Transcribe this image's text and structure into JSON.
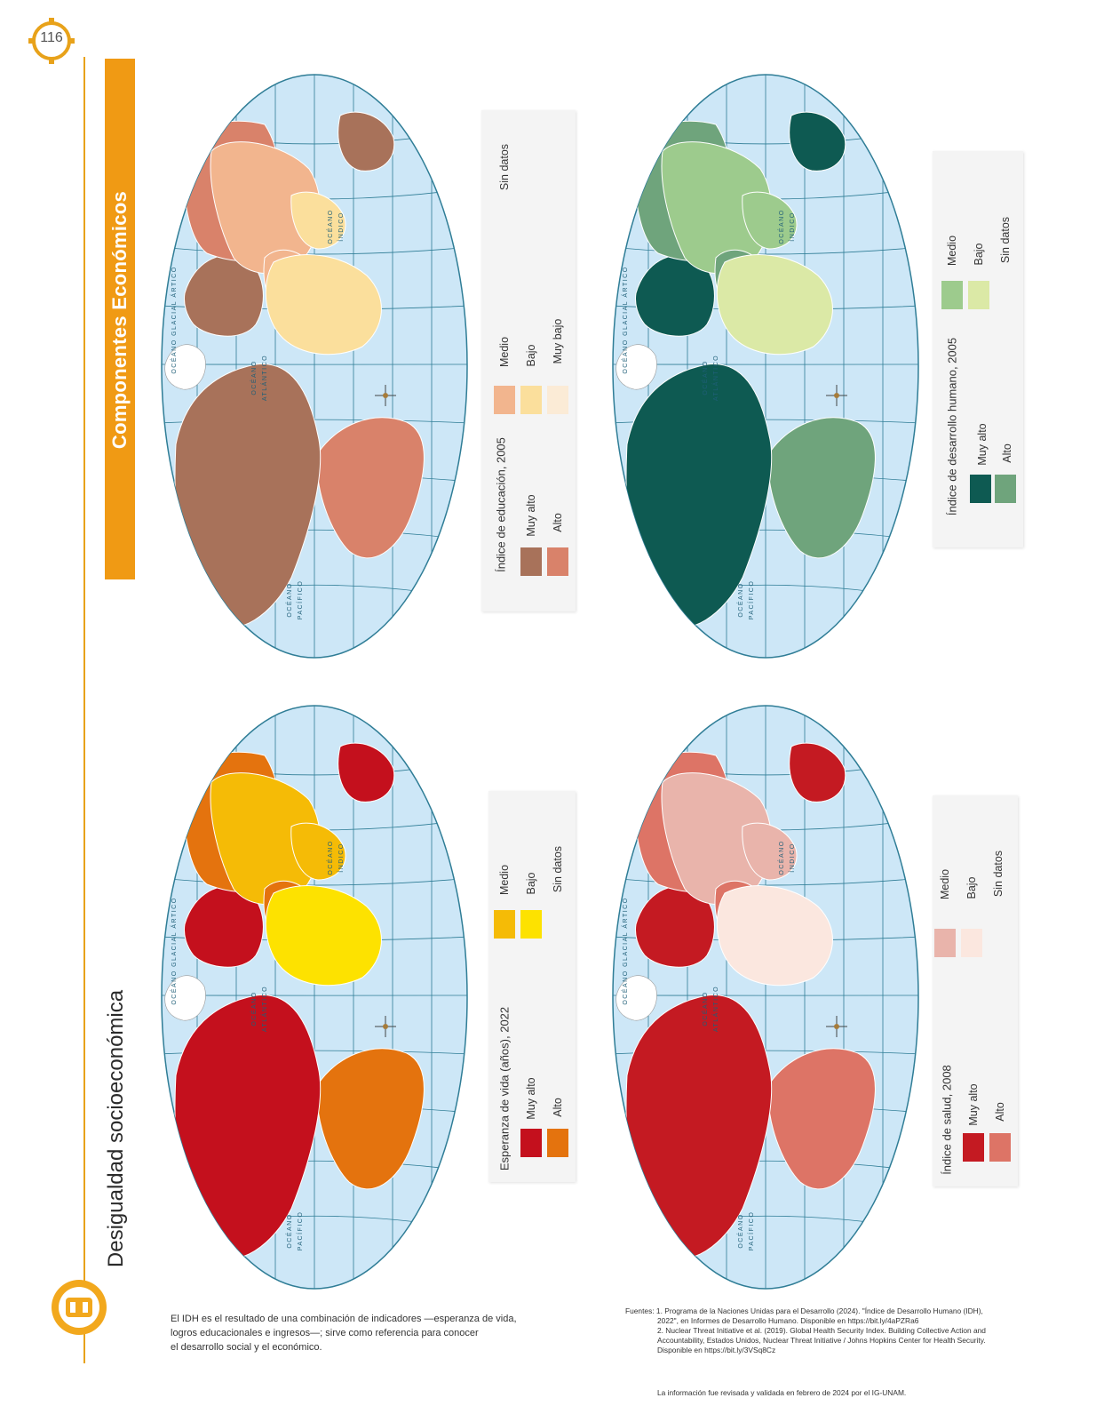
{
  "page": {
    "number": "116",
    "section_band": "Componentes Económicos",
    "title": "Desigualdad socioeconómica"
  },
  "map_labels": {
    "ocean_arctic": "OCÉANO GLACIAL ÁRTICO",
    "ocean_indic_1": "OCÉANO",
    "ocean_indic_2": "ÍNDICO",
    "ocean_atl_1": "OCÉANO",
    "ocean_atl_2": "ATLÁNTICO",
    "ocean_pac_1": "OCÉANO",
    "ocean_pac_2": "PACÍFICO"
  },
  "colors": {
    "ocean": "#cde7f7",
    "grid": "#2f7d96",
    "border": "#ffffff",
    "nodata": "#ffffff"
  },
  "maps": [
    {
      "id": "educacion",
      "legend_title": "Índice de educación, 2005",
      "classes": [
        {
          "label": "Muy alto",
          "color": "#a8725a"
        },
        {
          "label": "Alto",
          "color": "#d9826a"
        },
        {
          "label": "Medio",
          "color": "#f2b58e"
        },
        {
          "label": "Bajo",
          "color": "#fbdf9c"
        },
        {
          "label": "Muy bajo",
          "color": "#fbebd6"
        },
        {
          "label": "Sin datos",
          "color": "#ffffff"
        }
      ],
      "regions": {
        "americas": 1,
        "north_am": 0,
        "south_am": 1,
        "europe": 0,
        "russia": 1,
        "asia": 2,
        "middle_east": 2,
        "africa": 3,
        "south_asia": 3,
        "oceania": 0
      }
    },
    {
      "id": "desarrollo",
      "legend_title": "Índice de desarrollo humano, 2005",
      "classes": [
        {
          "label": "Muy alto",
          "color": "#0e5a52"
        },
        {
          "label": "Alto",
          "color": "#6fa47c"
        },
        {
          "label": "Medio",
          "color": "#9dcb8d"
        },
        {
          "label": "Bajo",
          "color": "#dbe9a6"
        },
        {
          "label": "Sin datos",
          "color": "#ffffff"
        }
      ],
      "regions": {
        "americas": 0,
        "north_am": 0,
        "south_am": 1,
        "europe": 0,
        "russia": 1,
        "asia": 2,
        "middle_east": 1,
        "africa": 3,
        "south_asia": 2,
        "oceania": 0
      }
    },
    {
      "id": "esperanza",
      "legend_title": "Esperanza de vida (años), 2022",
      "classes": [
        {
          "label": "Muy alto",
          "color": "#c4101d"
        },
        {
          "label": "Alto",
          "color": "#e4730e"
        },
        {
          "label": "Medio",
          "color": "#f5bb06"
        },
        {
          "label": "Bajo",
          "color": "#fde200"
        },
        {
          "label": "Sin datos",
          "color": "#ffffff"
        }
      ],
      "regions": {
        "americas": 0,
        "north_am": 0,
        "south_am": 1,
        "europe": 0,
        "russia": 1,
        "asia": 2,
        "middle_east": 1,
        "africa": 3,
        "south_asia": 2,
        "oceania": 0
      }
    },
    {
      "id": "salud",
      "legend_title": "Índice de salud, 2008",
      "classes": [
        {
          "label": "Muy alto",
          "color": "#c41a22"
        },
        {
          "label": "Alto",
          "color": "#dd7466"
        },
        {
          "label": "Medio",
          "color": "#e9b4ab"
        },
        {
          "label": "Bajo",
          "color": "#fbe7df"
        },
        {
          "label": "Sin datos",
          "color": "#ffffff"
        }
      ],
      "regions": {
        "americas": 0,
        "north_am": 0,
        "south_am": 1,
        "europe": 0,
        "russia": 1,
        "asia": 2,
        "middle_east": 1,
        "africa": 3,
        "south_asia": 2,
        "oceania": 0
      }
    }
  ],
  "caption": {
    "line1": "El IDH es el resultado de una combinación de indicadores —esperanza de vida,",
    "line2": "logros educacionales e ingresos—; sirve como referencia para conocer",
    "line3": "el desarrollo social y el económico."
  },
  "sources": {
    "label": "Fuentes:",
    "s1a": "1. Programa de la Naciones Unidas para el Desarrollo (2024). \"Índice de Desarrollo Humano (IDH),",
    "s1b": "2022\", en Informes de Desarrollo Humano. Disponible en https://bit.ly/4aPZRa6",
    "s2a": "2. Nuclear Threat Initiative et al. (2019). Global Health Security Index. Building Collective Action and",
    "s2b": "Accountability, Estados Unidos, Nuclear Threat Initiative / Johns Hopkins Center for Health Security.",
    "s2c": "Disponible en https://bit.ly/3VSq8Cz",
    "revised": "La información fue revisada y validada en febrero de 2024 por el IG-UNAM."
  }
}
